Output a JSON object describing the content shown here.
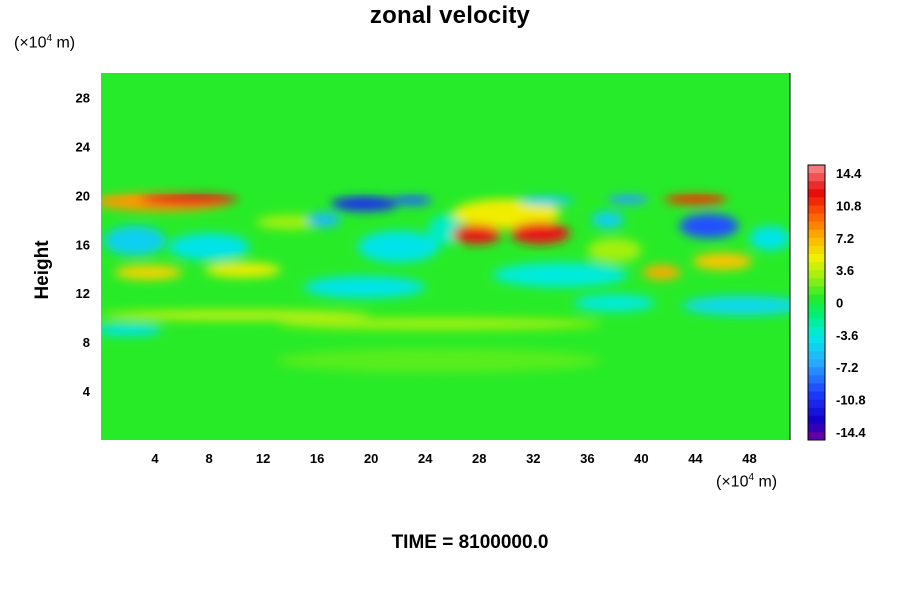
{
  "chart_data": {
    "type": "heatmap",
    "title": "zonal velocity",
    "ylabel": "Height",
    "xlabel": "",
    "x_unit": {
      "prefix": "(×10",
      "exp": "4",
      "suffix": " m)"
    },
    "y_unit": {
      "prefix": "(×10",
      "exp": "4",
      "suffix": " m)"
    },
    "xlim": [
      0,
      51
    ],
    "ylim": [
      0,
      30
    ],
    "x_ticks": [
      4,
      8,
      12,
      16,
      20,
      24,
      28,
      32,
      36,
      40,
      44,
      48
    ],
    "y_ticks": [
      4,
      8,
      12,
      16,
      20,
      24,
      28
    ],
    "colorbar": {
      "min": -15.3,
      "max": 15.3,
      "ticks": [
        14.4,
        10.8,
        7.2,
        3.6,
        0,
        -3.6,
        -7.2,
        -10.8,
        -14.4
      ]
    },
    "features": [
      {
        "x": 6.5,
        "y": 19.7,
        "value": 12.5,
        "rx": 3.6,
        "ry": 0.5
      },
      {
        "x": 4.5,
        "y": 19.5,
        "value": 8,
        "rx": 5,
        "ry": 0.8
      },
      {
        "x": 19.5,
        "y": 19.3,
        "value": -11,
        "rx": 2.5,
        "ry": 0.6
      },
      {
        "x": 23,
        "y": 19.6,
        "value": -9,
        "rx": 1.5,
        "ry": 0.4
      },
      {
        "x": 16.5,
        "y": 18.0,
        "value": -6,
        "rx": 1.2,
        "ry": 0.6
      },
      {
        "x": 27.8,
        "y": 16.8,
        "value": 12.5,
        "rx": 1.8,
        "ry": 0.8
      },
      {
        "x": 32.5,
        "y": 16.9,
        "value": 12.5,
        "rx": 2.2,
        "ry": 0.9
      },
      {
        "x": 30,
        "y": 18.5,
        "value": 5,
        "rx": 4,
        "ry": 1.2
      },
      {
        "x": 33,
        "y": 19.6,
        "value": -5,
        "rx": 2,
        "ry": 0.4
      },
      {
        "x": 39,
        "y": 19.7,
        "value": -7,
        "rx": 1.5,
        "ry": 0.4
      },
      {
        "x": 44,
        "y": 19.7,
        "value": 11,
        "rx": 2.3,
        "ry": 0.45
      },
      {
        "x": 45,
        "y": 17.5,
        "value": -9.5,
        "rx": 2.2,
        "ry": 1.0
      },
      {
        "x": 37.5,
        "y": 18.0,
        "value": -5,
        "rx": 1.2,
        "ry": 0.7
      },
      {
        "x": 46,
        "y": 14.6,
        "value": 6.5,
        "rx": 2.2,
        "ry": 0.7
      },
      {
        "x": 41.5,
        "y": 13.7,
        "value": 7.5,
        "rx": 1.4,
        "ry": 0.6
      },
      {
        "x": 3.5,
        "y": 13.7,
        "value": 6,
        "rx": 2.5,
        "ry": 0.6
      },
      {
        "x": 10.5,
        "y": 13.9,
        "value": 5,
        "rx": 2.8,
        "ry": 0.6
      },
      {
        "x": 2.5,
        "y": 16.3,
        "value": -5,
        "rx": 2.3,
        "ry": 1.2
      },
      {
        "x": 8,
        "y": 15.8,
        "value": -4,
        "rx": 3,
        "ry": 1.1
      },
      {
        "x": 22,
        "y": 15.8,
        "value": -4,
        "rx": 3,
        "ry": 1.3
      },
      {
        "x": 19.5,
        "y": 12.5,
        "value": -4,
        "rx": 4.5,
        "ry": 0.9
      },
      {
        "x": 34,
        "y": 13.5,
        "value": -3.5,
        "rx": 5,
        "ry": 1.0
      },
      {
        "x": 47.5,
        "y": 11.0,
        "value": -4.5,
        "rx": 4.5,
        "ry": 0.8
      },
      {
        "x": 38,
        "y": 11.2,
        "value": -3.5,
        "rx": 3,
        "ry": 0.7
      },
      {
        "x": 10,
        "y": 10.2,
        "value": 4,
        "rx": 10,
        "ry": 0.4
      },
      {
        "x": 2,
        "y": 9.0,
        "value": -4,
        "rx": 2.5,
        "ry": 0.5
      },
      {
        "x": 25,
        "y": 9.5,
        "value": 3,
        "rx": 12,
        "ry": 0.5
      },
      {
        "x": 25,
        "y": 6.5,
        "value": 1.5,
        "rx": 12,
        "ry": 1.0
      },
      {
        "x": 38,
        "y": 15.5,
        "value": 3,
        "rx": 2,
        "ry": 1.0
      },
      {
        "x": 14,
        "y": 17.8,
        "value": 3,
        "rx": 2.5,
        "ry": 0.6
      },
      {
        "x": 25.5,
        "y": 17.2,
        "value": -3,
        "rx": 1.3,
        "ry": 1.2
      },
      {
        "x": 49.5,
        "y": 16.5,
        "value": -4,
        "rx": 1.5,
        "ry": 1.0
      }
    ]
  },
  "time_label": "TIME = 8100000.0"
}
